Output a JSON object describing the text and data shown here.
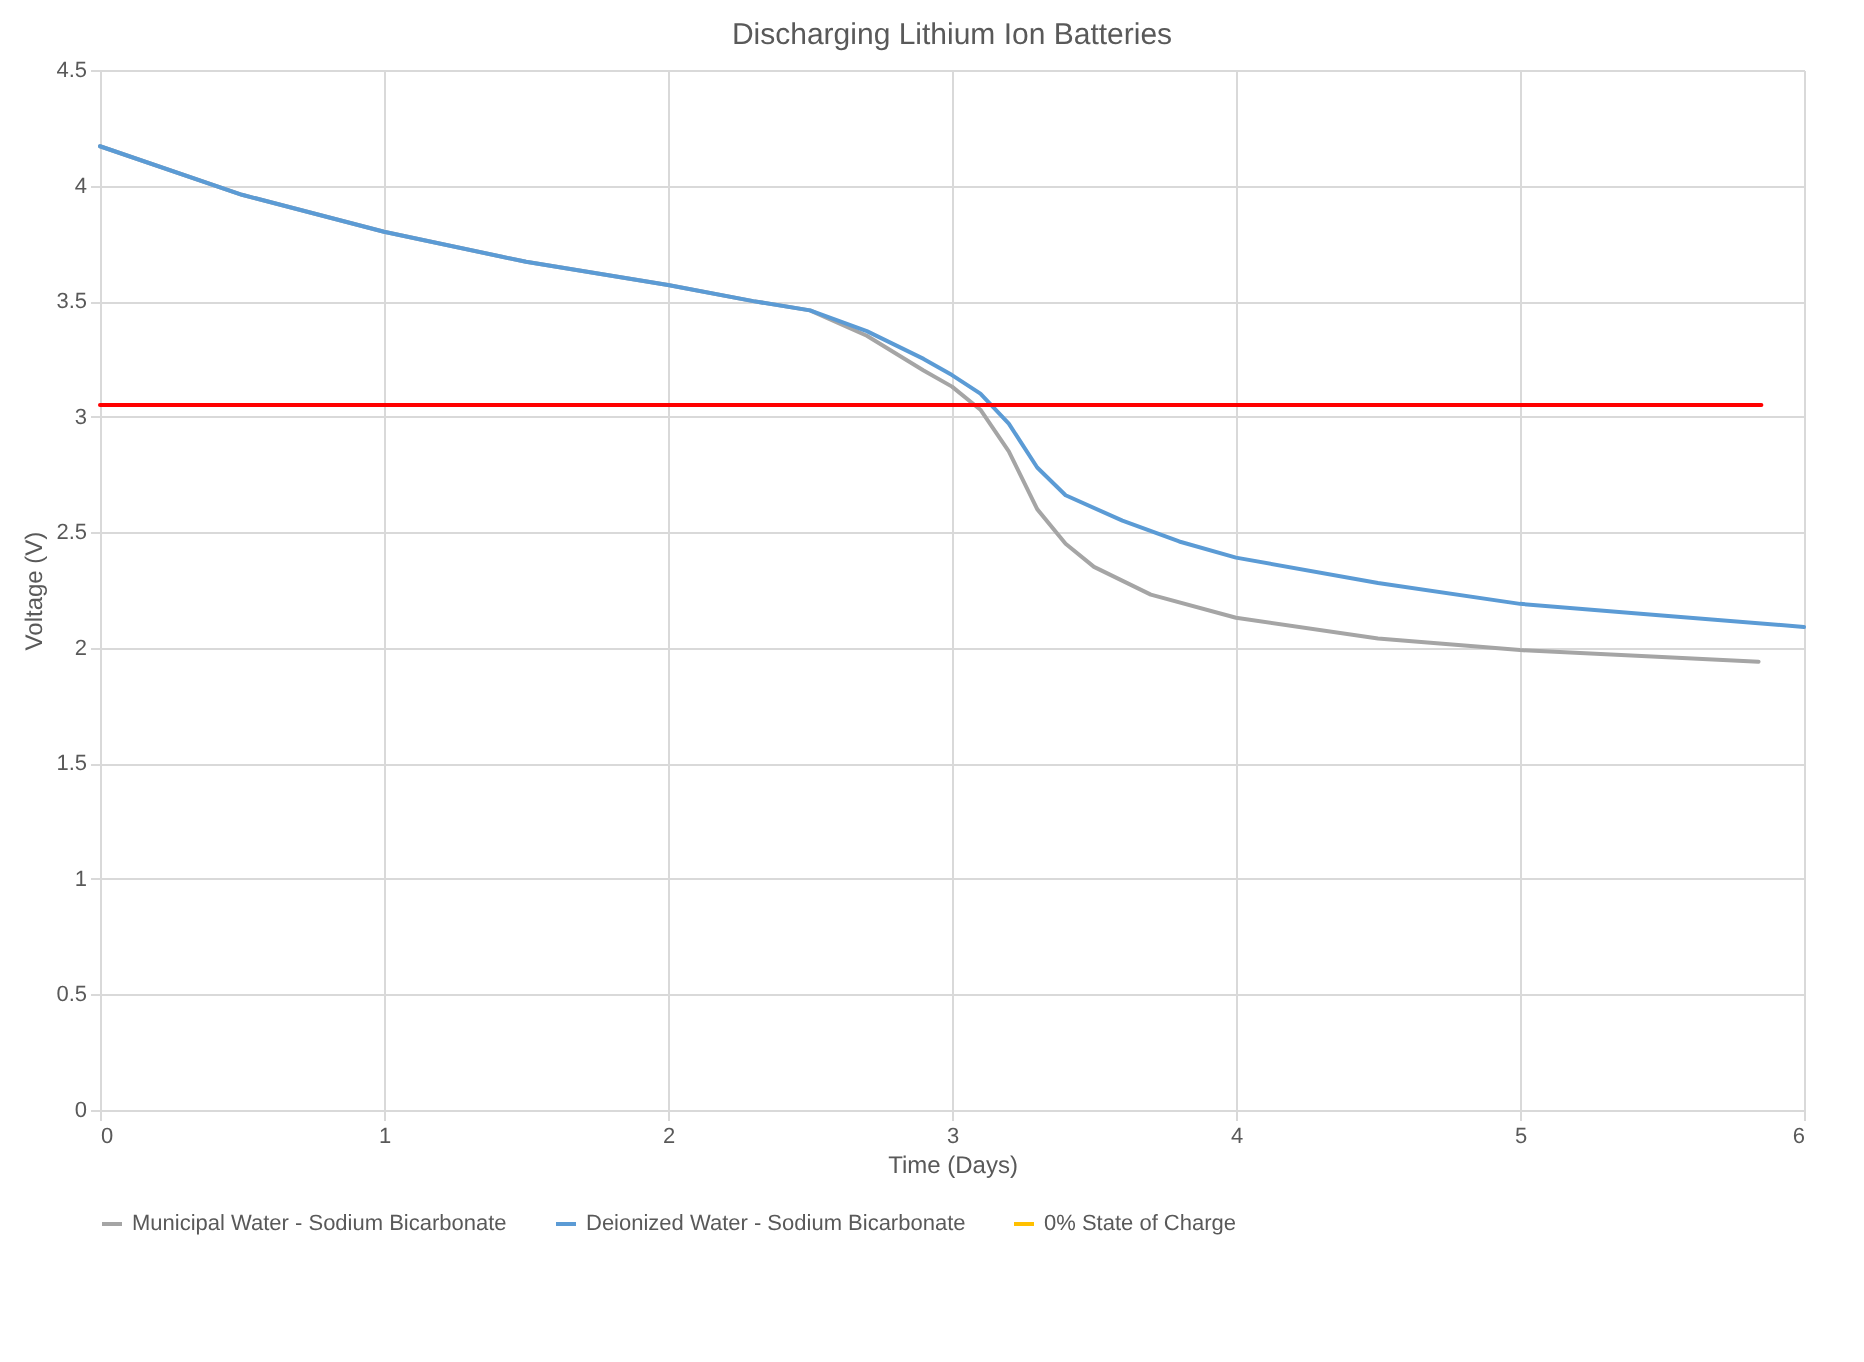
{
  "chart_data": {
    "type": "line",
    "title": "Discharging Lithium Ion Batteries",
    "xlabel": "Time (Days)",
    "ylabel": "Voltage (V)",
    "xlim": [
      0,
      6
    ],
    "xticks": [
      0,
      1,
      2,
      3,
      4,
      5,
      6
    ],
    "ylim": [
      0,
      4.5
    ],
    "yticks": [
      0,
      0.5,
      1,
      1.5,
      2,
      2.5,
      3,
      3.5,
      4,
      4.5
    ],
    "grid": true,
    "legend": "bottom",
    "marker": "none",
    "line_style": "solid",
    "series": [
      {
        "name": "Municipal Water - Sodium Bicarbonate",
        "color": "#a5a5a5",
        "x": [
          0,
          0.5,
          1,
          1.5,
          2,
          2.3,
          2.5,
          2.7,
          2.9,
          3.0,
          3.1,
          3.2,
          3.3,
          3.4,
          3.5,
          3.7,
          4,
          4.5,
          5,
          5.5,
          5.84
        ],
        "values": [
          4.17,
          3.96,
          3.8,
          3.67,
          3.57,
          3.5,
          3.46,
          3.35,
          3.2,
          3.13,
          3.03,
          2.85,
          2.6,
          2.45,
          2.35,
          2.23,
          2.13,
          2.04,
          1.99,
          1.96,
          1.94
        ]
      },
      {
        "name": "Deionized Water - Sodium Bicarbonate",
        "color": "#5b9bd5",
        "x": [
          0,
          0.5,
          1,
          1.5,
          2,
          2.3,
          2.5,
          2.7,
          2.9,
          3.0,
          3.1,
          3.2,
          3.3,
          3.4,
          3.6,
          3.8,
          4,
          4.5,
          5,
          5.5,
          6
        ],
        "values": [
          4.17,
          3.96,
          3.8,
          3.67,
          3.57,
          3.5,
          3.46,
          3.37,
          3.25,
          3.18,
          3.1,
          2.97,
          2.78,
          2.66,
          2.55,
          2.46,
          2.39,
          2.28,
          2.19,
          2.14,
          2.09
        ]
      },
      {
        "name": "0% State of Charge",
        "color": "#ffc000"
      },
      {
        "color": "#ff0000",
        "x": [
          0,
          5.85
        ],
        "values": [
          3.05,
          3.05
        ]
      }
    ]
  }
}
